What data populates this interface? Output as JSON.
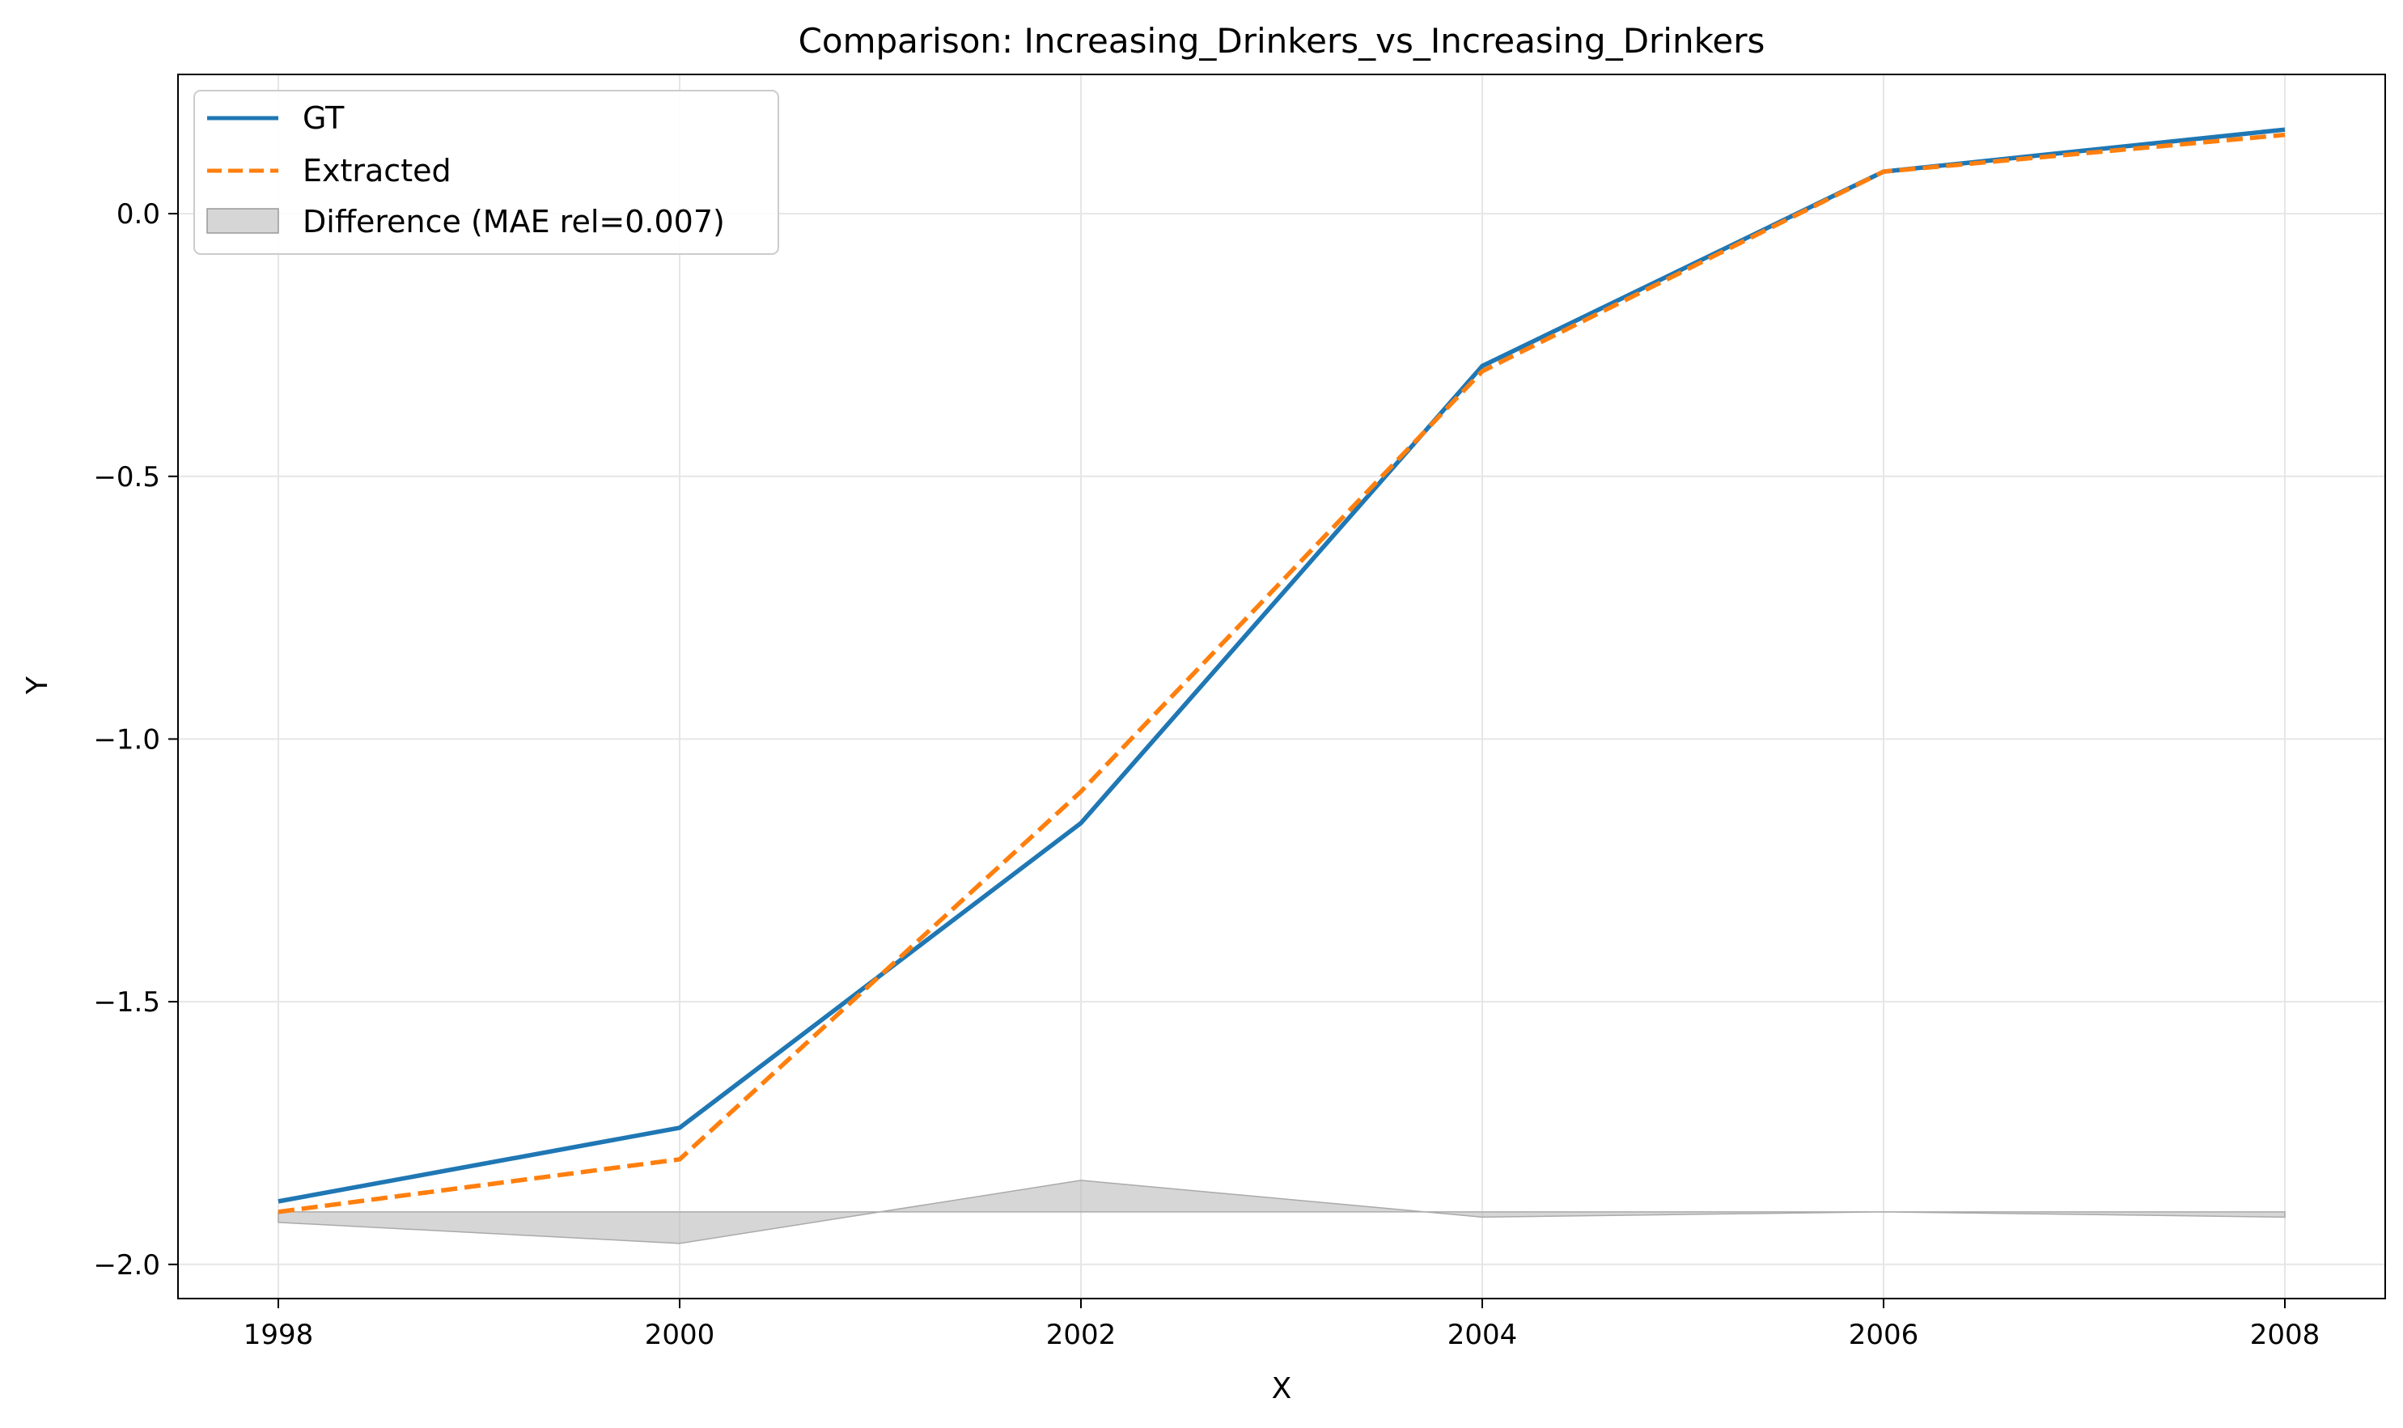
{
  "chart_data": {
    "type": "line",
    "title": "Comparison: Increasing_Drinkers_vs_Increasing_Drinkers",
    "xlabel": "X",
    "ylabel": "Y",
    "xlim": [
      1997.5,
      2008.5
    ],
    "ylim": [
      -2.065,
      0.265
    ],
    "x_ticks": [
      1998,
      2000,
      2002,
      2004,
      2006,
      2008
    ],
    "x_tick_labels": [
      "1998",
      "2000",
      "2002",
      "2004",
      "2006",
      "2008"
    ],
    "y_ticks": [
      0.0,
      -0.5,
      -1.0,
      -1.5,
      -2.0
    ],
    "y_tick_labels": [
      "0.0",
      "−0.5",
      "−1.0",
      "−1.5",
      "−2.0"
    ],
    "grid": true,
    "legend_position": "top-left",
    "x": [
      1998,
      2000,
      2002,
      2004,
      2006,
      2008
    ],
    "series": [
      {
        "name": "GT",
        "style": "solid",
        "color": "#1f77b4",
        "values": [
          -1.88,
          -1.74,
          -1.16,
          -0.29,
          0.08,
          0.16
        ]
      },
      {
        "name": "Extracted",
        "style": "dashed",
        "color": "#ff7f0e",
        "values": [
          -1.9,
          -1.8,
          -1.1,
          -0.3,
          0.08,
          0.15
        ]
      }
    ],
    "difference_band": {
      "name": "Difference (MAE rel=0.007)",
      "color": "#bbbbbb",
      "baseline": -1.9,
      "values": [
        -0.02,
        -0.06,
        0.06,
        -0.01,
        0.0,
        -0.01
      ]
    }
  }
}
